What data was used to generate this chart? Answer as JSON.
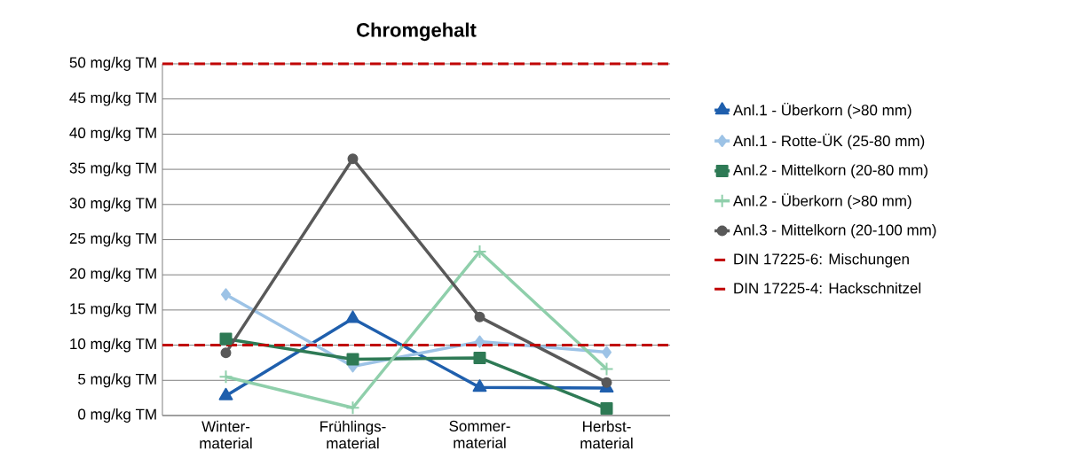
{
  "chart_data": {
    "type": "line",
    "title": "Chromgehalt",
    "categories": [
      "Winter-material",
      "Frühlings-material",
      "Sommer-material",
      "Herbst-material"
    ],
    "series": [
      {
        "name": "Anl.1 - Überkorn (>80 mm)",
        "color": "#1f5fad",
        "marker": "triangle",
        "values": [
          2.8,
          13.8,
          4.0,
          3.9
        ]
      },
      {
        "name": "Anl.1 - Rotte-ÜK (25-80 mm)",
        "color": "#9dc3e6",
        "marker": "diamond",
        "values": [
          17.2,
          7.0,
          10.5,
          9.0
        ]
      },
      {
        "name": "Anl.2 - Mittelkorn (20-80 mm)",
        "color": "#2e7a55",
        "marker": "square",
        "values": [
          10.9,
          8.0,
          8.2,
          1.0
        ]
      },
      {
        "name": "Anl.2 - Überkorn (>80 mm)",
        "color": "#8fcfab",
        "marker": "cross",
        "values": [
          5.5,
          1.1,
          23.3,
          6.6
        ]
      },
      {
        "name": "Anl.3 - Mittelkorn (20-100 mm)",
        "color": "#595959",
        "marker": "circle",
        "values": [
          8.9,
          36.5,
          14.0,
          4.7
        ]
      }
    ],
    "ref_lines": [
      {
        "axis": "y",
        "value": 50,
        "label": "DIN 17225-6: Mischungen",
        "color": "#c00000",
        "line_style": "dashed"
      },
      {
        "axis": "y",
        "value": 10,
        "label": "DIN 17225-4: Hackschnitzel",
        "color": "#c00000",
        "line_style": "dashed"
      }
    ],
    "ylim": [
      0,
      50
    ],
    "yticks": [
      {
        "value": 0,
        "label": "0 mg/kg TM"
      },
      {
        "value": 5,
        "label": "5 mg/kg TM"
      },
      {
        "value": 10,
        "label": "10 mg/kg TM"
      },
      {
        "value": 15,
        "label": "15 mg/kg TM"
      },
      {
        "value": 20,
        "label": "20 mg/kg TM"
      },
      {
        "value": 25,
        "label": "25 mg/kg TM"
      },
      {
        "value": 30,
        "label": "30 mg/kg TM"
      },
      {
        "value": 35,
        "label": "35 mg/kg TM"
      },
      {
        "value": 40,
        "label": "40 mg/kg TM"
      },
      {
        "value": 45,
        "label": "45 mg/kg TM"
      },
      {
        "value": 50,
        "label": "50 mg/kg TM"
      }
    ],
    "grid": "y",
    "legend": "right",
    "line_style": "solid"
  }
}
